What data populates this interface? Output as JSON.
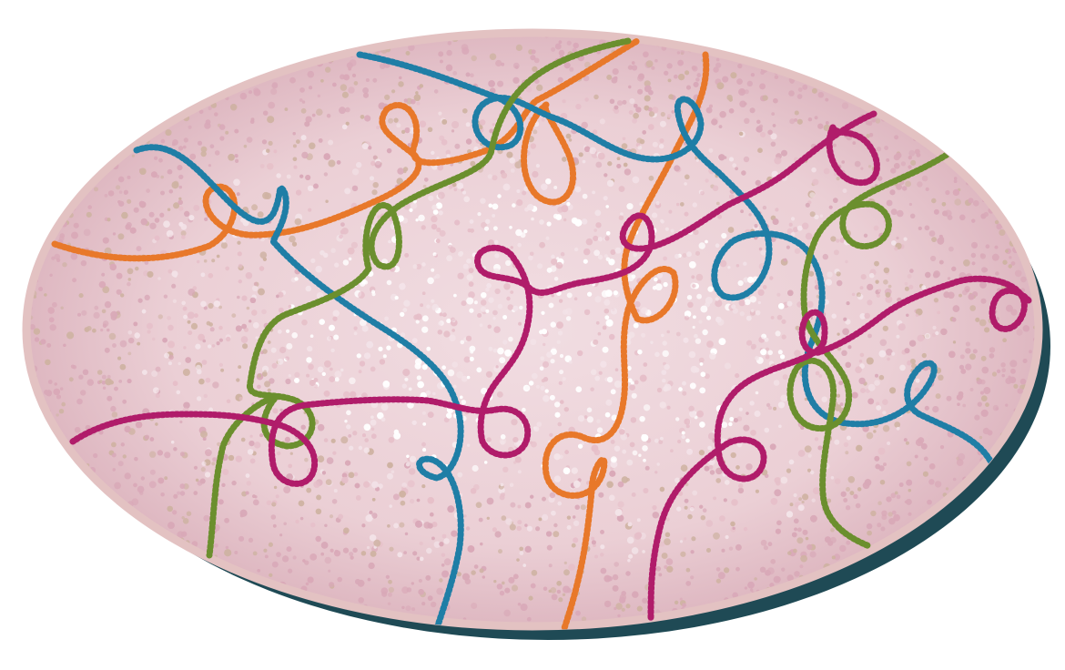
{
  "figure": {
    "background_color": "#ffffff",
    "dish_rim_color": "#e3c2c2",
    "dish_fill_color": "#e8c9cd",
    "dish_shadow_color": "#1f4a55",
    "speckle_colors": [
      "#d9a9b8",
      "#e6bfc9",
      "#f3e3e8",
      "#cfb3a3",
      "#ffffff"
    ],
    "strands": [
      {
        "name": "orange",
        "color": "#e8782a"
      },
      {
        "name": "blue",
        "color": "#1f7ea6"
      },
      {
        "name": "green",
        "color": "#6b8f2e"
      },
      {
        "name": "magenta",
        "color": "#b01c6a"
      }
    ]
  }
}
